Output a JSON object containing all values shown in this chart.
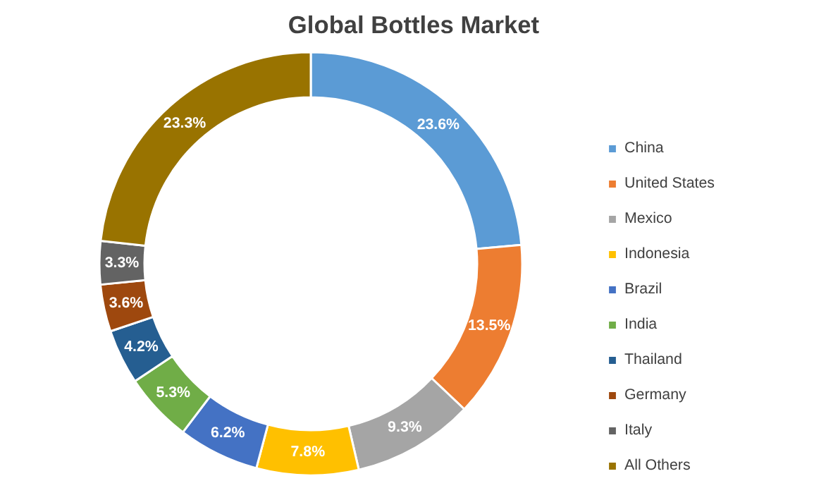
{
  "chart_data": {
    "type": "donut",
    "title": "Global Bottles Market",
    "categories": [
      "China",
      "United States",
      "Mexico",
      "Indonesia",
      "Brazil",
      "India",
      "Thailand",
      "Germany",
      "Italy",
      "All Others"
    ],
    "values": [
      23.6,
      13.5,
      9.3,
      7.8,
      6.2,
      5.3,
      4.2,
      3.6,
      3.3,
      23.3
    ],
    "value_labels": [
      "23.6%",
      "13.5%",
      "9.3%",
      "7.8%",
      "6.2%",
      "5.3%",
      "4.2%",
      "3.6%",
      "3.3%",
      "23.3%"
    ],
    "colors": [
      "#5b9bd5",
      "#ed7d31",
      "#a5a5a5",
      "#ffc000",
      "#4472c4",
      "#70ad47",
      "#255e91",
      "#9e480e",
      "#636363",
      "#997300"
    ],
    "legend": "right"
  }
}
